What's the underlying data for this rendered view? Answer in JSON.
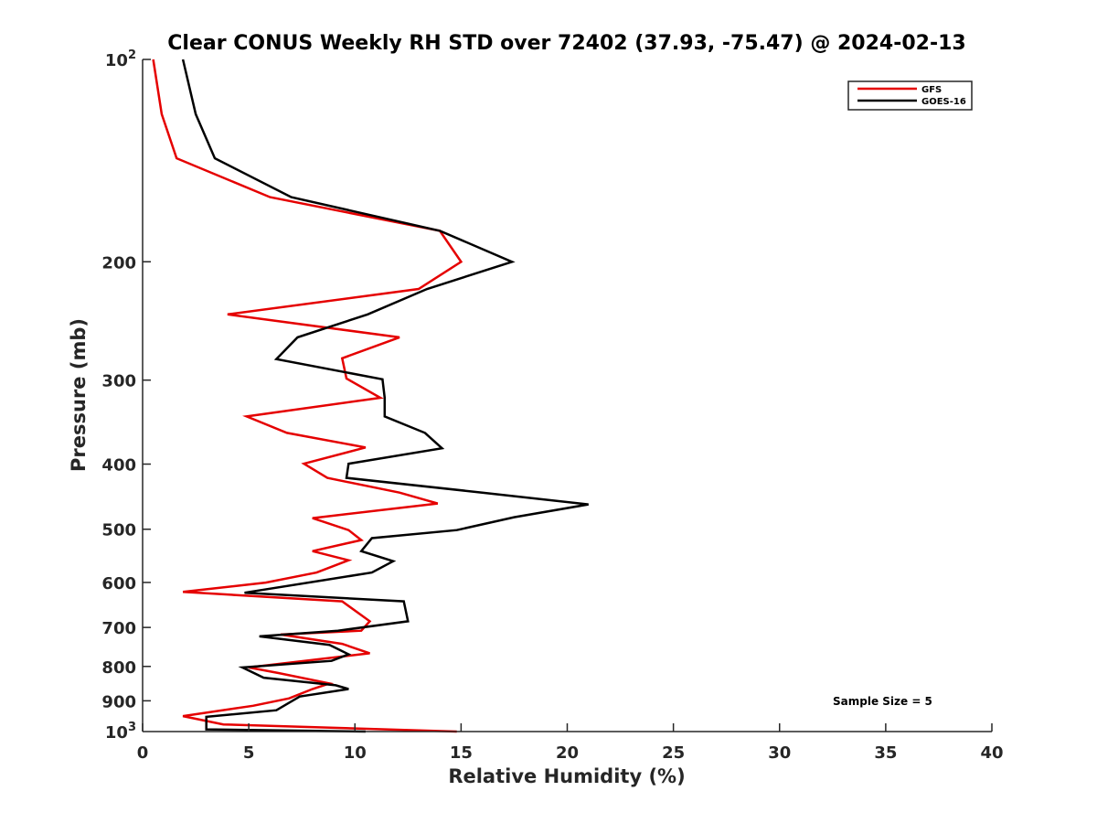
{
  "chart_data": {
    "type": "line",
    "title": "Clear CONUS Weekly RH STD over 72402 (37.93, -75.47) @ 2024-02-13",
    "xlabel": "Relative Humidity (%)",
    "ylabel": "Pressure (mb)",
    "xlim": [
      0,
      40
    ],
    "ylim": [
      100,
      1000
    ],
    "yscale": "log",
    "y_reversed": true,
    "xticks": [
      0,
      5,
      10,
      15,
      20,
      25,
      30,
      35,
      40
    ],
    "xtick_labels": [
      "0",
      "5",
      "10",
      "15",
      "20",
      "25",
      "30",
      "35",
      "40"
    ],
    "yticks": [
      100,
      200,
      300,
      400,
      500,
      600,
      700,
      800,
      900,
      1000
    ],
    "ytick_labels": [
      "10^2",
      "200",
      "300",
      "400",
      "500",
      "600",
      "700",
      "800",
      "900",
      "10^3"
    ],
    "grid": false,
    "legend_position": "top-right",
    "annotation": "Sample Size = 5",
    "series": [
      {
        "name": "GFS",
        "color": "#e50000",
        "points": [
          [
            0.5,
            100
          ],
          [
            0.9,
            120.6
          ],
          [
            1.6,
            140.3
          ],
          [
            6.0,
            160.3
          ],
          [
            14.0,
            179.9
          ],
          [
            15.0,
            200.0
          ],
          [
            13.0,
            219.5
          ],
          [
            4.0,
            239.5
          ],
          [
            12.1,
            259.1
          ],
          [
            9.4,
            278.4
          ],
          [
            9.6,
            298.3
          ],
          [
            11.2,
            318.7
          ],
          [
            4.9,
            339.7
          ],
          [
            6.8,
            359.5
          ],
          [
            10.5,
            377.8
          ],
          [
            7.6,
            399.5
          ],
          [
            8.7,
            419.4
          ],
          [
            12.1,
            441.0
          ],
          [
            13.9,
            457.8
          ],
          [
            8.0,
            481.4
          ],
          [
            9.7,
            501.5
          ],
          [
            10.3,
            518.9
          ],
          [
            8.0,
            538.9
          ],
          [
            9.7,
            556.2
          ],
          [
            8.2,
            579.9
          ],
          [
            5.8,
            600.3
          ],
          [
            1.9,
            619.7
          ],
          [
            9.4,
            640.2
          ],
          [
            10.7,
            685.4
          ],
          [
            10.3,
            707.9
          ],
          [
            6.5,
            717.1
          ],
          [
            9.4,
            740.6
          ],
          [
            10.7,
            764.9
          ],
          [
            5.0,
            802.8
          ],
          [
            6.4,
            818.3
          ],
          [
            8.8,
            848.0
          ],
          [
            8.0,
            864.5
          ],
          [
            6.9,
            892.5
          ],
          [
            5.2,
            915.4
          ],
          [
            1.9,
            948.3
          ],
          [
            3.8,
            975.9
          ],
          [
            14.8,
            1000.0
          ]
        ]
      },
      {
        "name": "GOES-16",
        "color": "#000000",
        "points": [
          [
            1.9,
            100
          ],
          [
            2.5,
            120.6
          ],
          [
            3.4,
            140.3
          ],
          [
            7.0,
            160.3
          ],
          [
            14.0,
            179.9
          ],
          [
            17.4,
            200.0
          ],
          [
            13.4,
            219.5
          ],
          [
            10.6,
            239.5
          ],
          [
            7.3,
            259.1
          ],
          [
            6.3,
            279.2
          ],
          [
            11.3,
            299.2
          ],
          [
            11.4,
            318.7
          ],
          [
            11.4,
            339.7
          ],
          [
            13.3,
            359.5
          ],
          [
            14.1,
            378.9
          ],
          [
            9.7,
            399.5
          ],
          [
            9.6,
            419.4
          ],
          [
            16.0,
            441.0
          ],
          [
            21.0,
            459.3
          ],
          [
            17.5,
            479.9
          ],
          [
            14.8,
            501.5
          ],
          [
            10.8,
            515.6
          ],
          [
            10.3,
            538.9
          ],
          [
            11.8,
            557.9
          ],
          [
            10.8,
            579.9
          ],
          [
            4.8,
            621.6
          ],
          [
            12.3,
            640.2
          ],
          [
            12.5,
            685.4
          ],
          [
            9.2,
            707.9
          ],
          [
            5.5,
            721.8
          ],
          [
            8.8,
            743.0
          ],
          [
            9.7,
            767.4
          ],
          [
            8.9,
            784.9
          ],
          [
            4.7,
            802.8
          ],
          [
            5.7,
            831.6
          ],
          [
            9.1,
            853.3
          ],
          [
            9.7,
            864.5
          ],
          [
            7.4,
            886.9
          ],
          [
            6.3,
            929.6
          ],
          [
            3.0,
            950.7
          ],
          [
            3.0,
            992.5
          ],
          [
            10.5,
            1000.0
          ]
        ]
      }
    ]
  }
}
